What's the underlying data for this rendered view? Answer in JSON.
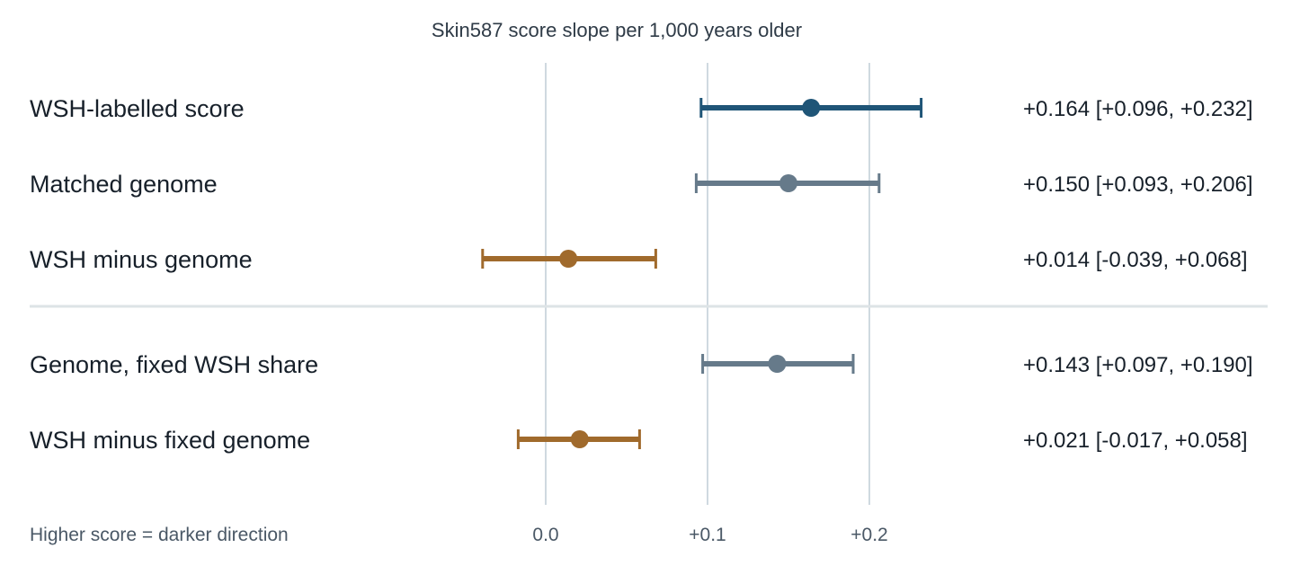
{
  "chart_data": {
    "type": "forest",
    "title": "Skin587 score slope per 1,000 years older",
    "footnote": "Higher score = darker direction",
    "x_ticks": [
      {
        "value": 0.0,
        "label": "0.0"
      },
      {
        "value": 0.1,
        "label": "+0.1"
      },
      {
        "value": 0.2,
        "label": "+0.2"
      }
    ],
    "xlim": [
      -0.05,
      0.25
    ],
    "grid": "vertical at ticks",
    "separator_after_row": 3,
    "rows": [
      {
        "label": "WSH-labelled score",
        "estimate": 0.164,
        "low": 0.096,
        "high": 0.232,
        "ci_text": "+0.164 [+0.096, +0.232]",
        "color": "#1f5577"
      },
      {
        "label": "Matched genome",
        "estimate": 0.15,
        "low": 0.093,
        "high": 0.206,
        "ci_text": "+0.150 [+0.093, +0.206]",
        "color": "#667a8a"
      },
      {
        "label": "WSH minus genome",
        "estimate": 0.014,
        "low": -0.039,
        "high": 0.068,
        "ci_text": "+0.014 [-0.039, +0.068]",
        "color": "#a06a2c"
      },
      {
        "label": "Genome, fixed WSH share",
        "estimate": 0.143,
        "low": 0.097,
        "high": 0.19,
        "ci_text": "+0.143 [+0.097, +0.190]",
        "color": "#667a8a"
      },
      {
        "label": "WSH minus fixed genome",
        "estimate": 0.021,
        "low": -0.017,
        "high": 0.058,
        "ci_text": "+0.021 [-0.017, +0.058]",
        "color": "#a06a2c"
      }
    ]
  }
}
